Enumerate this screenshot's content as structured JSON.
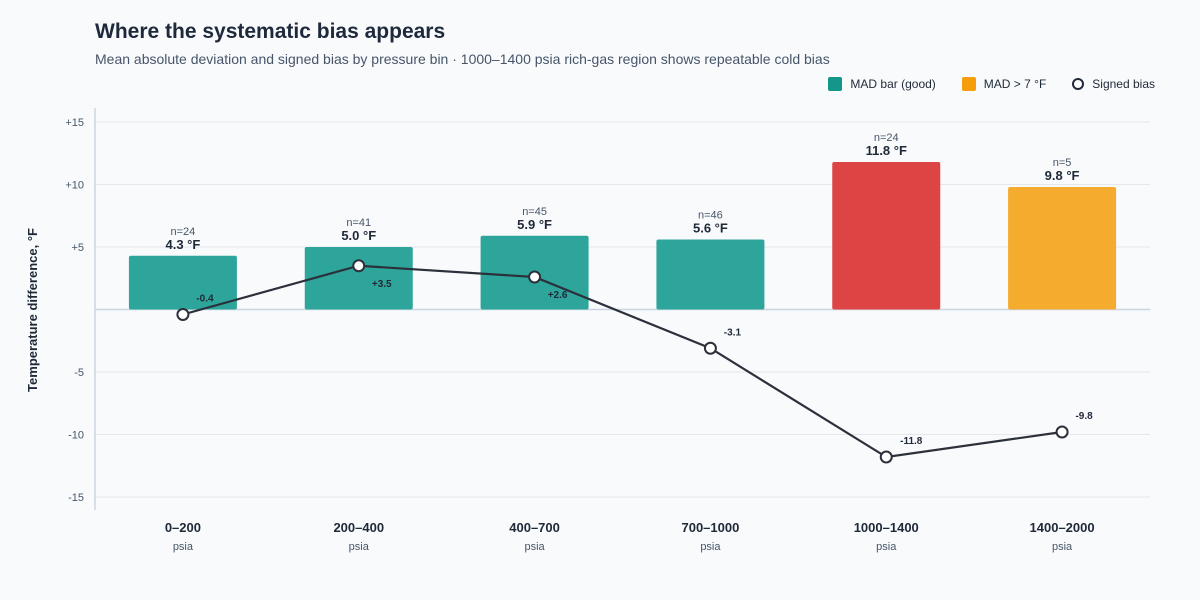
{
  "header": {
    "title": "Where the systematic bias appears",
    "subtitle": "Mean absolute deviation and signed bias by pressure bin · 1000–1400 psia rich-gas region shows repeatable cold bias"
  },
  "legend": {
    "items": [
      {
        "label": "MAD bar (good)",
        "color": "#14968a",
        "kind": "swatch"
      },
      {
        "label": "MAD > 7 °F",
        "color": "#f59e0b",
        "kind": "swatch"
      },
      {
        "label": "Signed bias",
        "color": "#1f2937",
        "kind": "ring"
      }
    ]
  },
  "chart_data": {
    "type": "bar",
    "title": "Where the systematic bias appears",
    "ylabel": "Temperature difference, °F",
    "ylim": [
      -15,
      15
    ],
    "yticks": [
      {
        "value": 15,
        "label": "+15"
      },
      {
        "value": 10,
        "label": "+10"
      },
      {
        "value": 5,
        "label": "+5"
      },
      {
        "value": -5,
        "label": "-5"
      },
      {
        "value": -10,
        "label": "-10"
      },
      {
        "value": -15,
        "label": "-15"
      }
    ],
    "categories": [
      "0–200",
      "200–400",
      "400–700",
      "700–1000",
      "1000–1400",
      "1400–2000"
    ],
    "category_unit": "psia",
    "grid": true,
    "legend_position": "top-right",
    "series": [
      {
        "name": "MAD bar (good)",
        "kind": "bar",
        "values": [
          4.3,
          5.0,
          5.9,
          5.6,
          11.8,
          9.8
        ],
        "value_labels": [
          "4.3 °F",
          "5.0 °F",
          "5.9 °F",
          "5.6 °F",
          "11.8 °F",
          "9.8 °F"
        ],
        "counts": [
          "n=24",
          "n=41",
          "n=45",
          "n=46",
          "n=24",
          "n=5"
        ],
        "colors": [
          "#2ea59b",
          "#2ea59b",
          "#2ea59b",
          "#2ea59b",
          "#dd4444",
          "#f5ab2e"
        ]
      },
      {
        "name": "Signed bias",
        "kind": "line",
        "values": [
          -0.4,
          3.5,
          2.6,
          -3.1,
          -11.8,
          -9.8
        ],
        "value_labels": [
          "-0.4",
          "+3.5",
          "+2.6",
          "-3.1",
          "-11.8",
          "-9.8"
        ],
        "color": "#2b303b"
      }
    ]
  }
}
